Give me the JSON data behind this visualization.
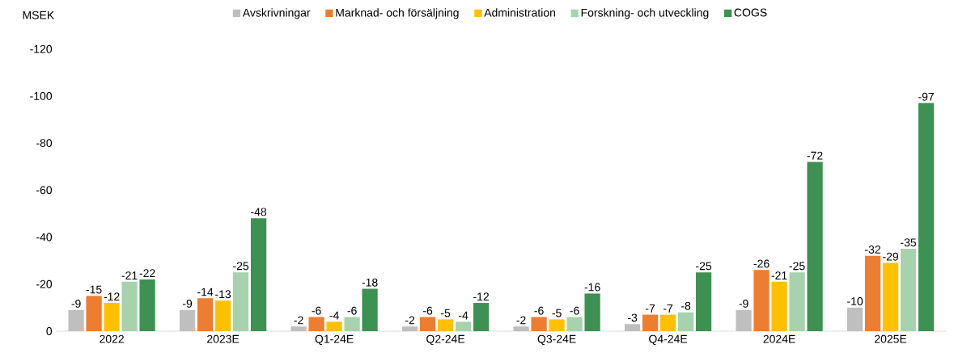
{
  "chart_data": {
    "type": "bar",
    "ylabel": "MSEK",
    "categories": [
      "2022",
      "2023E",
      "Q1-24E",
      "Q2-24E",
      "Q3-24E",
      "Q4-24E",
      "2024E",
      "2025E"
    ],
    "series": [
      {
        "name": "Avskrivningar",
        "color": "#bfbfbf",
        "values": [
          -9,
          -9,
          -2,
          -2,
          -2,
          -3,
          -9,
          -10
        ]
      },
      {
        "name": "Marknad- och försäljning",
        "color": "#ed7d31",
        "values": [
          -15,
          -14,
          -6,
          -6,
          -6,
          -7,
          -26,
          -32
        ]
      },
      {
        "name": "Administration",
        "color": "#ffc000",
        "values": [
          -12,
          -13,
          -4,
          -5,
          -5,
          -7,
          -21,
          -29
        ]
      },
      {
        "name": "Forskning- och utveckling",
        "color": "#a6d3ae",
        "values": [
          -21,
          -25,
          -6,
          -4,
          -6,
          -8,
          -25,
          -35
        ]
      },
      {
        "name": "COGS",
        "color": "#3d9152",
        "values": [
          -22,
          -48,
          -18,
          -12,
          -16,
          -25,
          -72,
          -97
        ]
      }
    ],
    "ylim": [
      0,
      -120
    ],
    "yticks": [
      0,
      -20,
      -40,
      -60,
      -80,
      -100,
      -120
    ],
    "data_labels": true,
    "legend": "top",
    "grid": false
  }
}
